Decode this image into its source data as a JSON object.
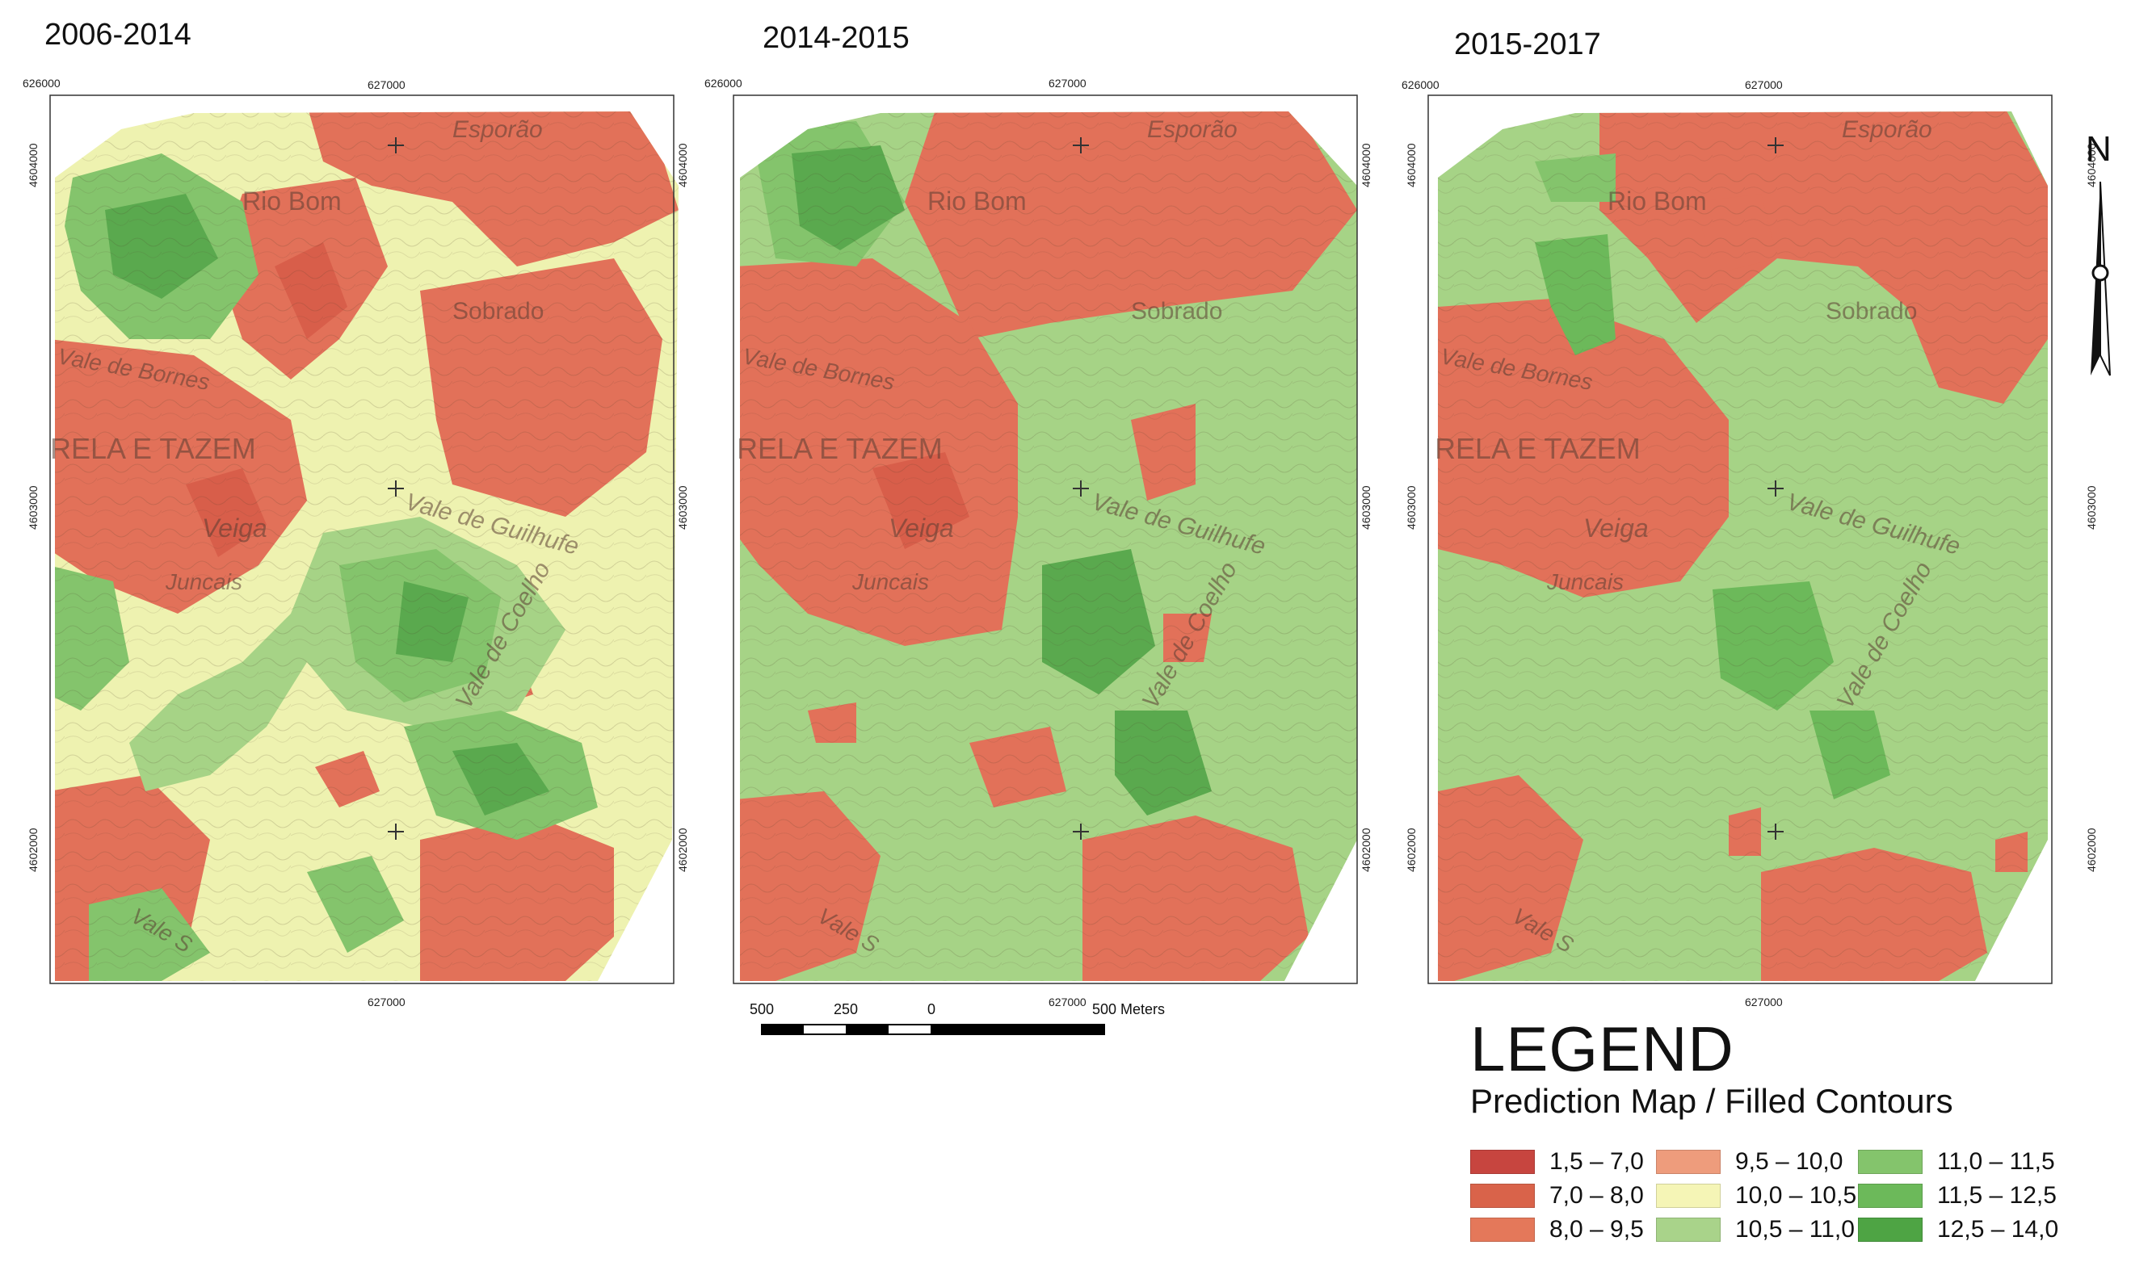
{
  "periods": [
    {
      "title": "2006-2014"
    },
    {
      "title": "2014-2015"
    },
    {
      "title": "2015-2017"
    }
  ],
  "coords": {
    "top_left": "626000",
    "top_mid": "627000",
    "bottom_mid": "627000",
    "y_top": "4604000",
    "y_mid": "4603000",
    "y_bot": "4602000"
  },
  "place_names": {
    "esporao": "Esporão",
    "rio_bom": "Rio Bom",
    "sobrado": "Sobrado",
    "bornes": "Vale de Bornes",
    "rela": "RELA E TAZEM",
    "veiga": "Veiga",
    "junqais": "Juncais",
    "guilhufe": "Vale de Guilhufe",
    "coelho": "Vale de Coelho",
    "vale_s": "Vale S"
  },
  "scalebar": {
    "l500": "500",
    "l250": "250",
    "l0": "0",
    "lmeters": "500 Meters"
  },
  "north": "N",
  "legend": {
    "title": "LEGEND",
    "subtitle": "Prediction Map / Filled Contours",
    "items": [
      {
        "label": "1,5 – 7,0",
        "color": "#c7453f"
      },
      {
        "label": "7,0 – 8,0",
        "color": "#d9634a"
      },
      {
        "label": "8,0 – 9,5",
        "color": "#e4785a"
      },
      {
        "label": "9,5 – 10,0",
        "color": "#ee9c7c"
      },
      {
        "label": "10,0 – 10,5",
        "color": "#f5f5b6"
      },
      {
        "label": "10,5 – 11,0",
        "color": "#a9d38a"
      },
      {
        "label": "11,0 – 11,5",
        "color": "#84c46c"
      },
      {
        "label": "11,5 – 12,5",
        "color": "#6cb95a"
      },
      {
        "label": "12,5 – 14,0",
        "color": "#4ea444"
      }
    ]
  },
  "colors": {
    "red": "#e27159",
    "red_dark": "#d85e4a",
    "salmon": "#ee9c7c",
    "yellow": "#eef2b0",
    "green_light": "#a6d386",
    "green": "#84c46c",
    "green_dark": "#5aa94e"
  }
}
